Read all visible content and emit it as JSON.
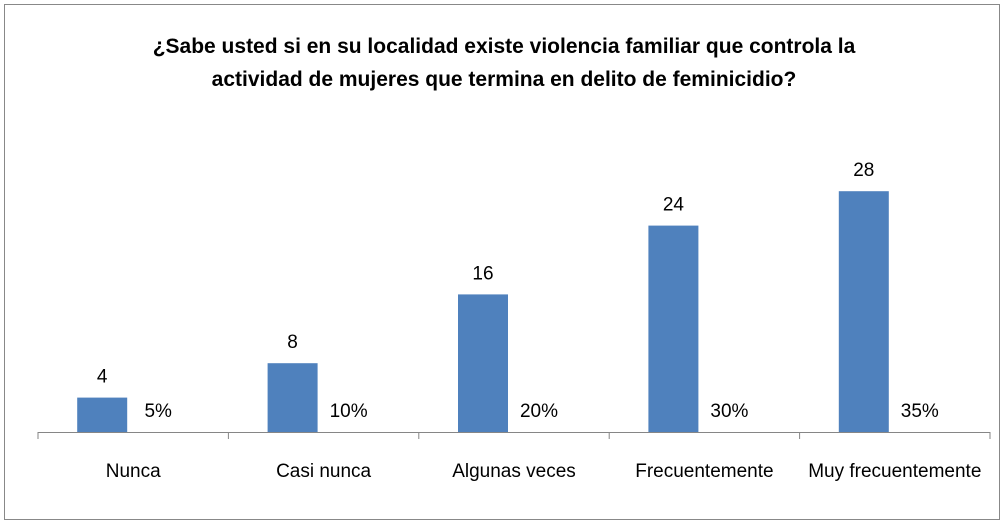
{
  "chart_data": {
    "type": "bar",
    "title": "¿Sabe usted si en su localidad existe violencia familiar que controla la actividad de mujeres que termina en delito de feminicidio?",
    "categories": [
      "Nunca",
      "Casi nunca",
      "Algunas veces",
      "Frecuentemente",
      "Muy frecuentemente"
    ],
    "series": [
      {
        "color": "#4f81bd",
        "values": [
          4,
          8,
          16,
          24,
          28
        ],
        "label_position": "outside_end"
      },
      {
        "color": "none",
        "values": [
          5,
          10,
          20,
          30,
          35
        ],
        "value_labels": [
          "5%",
          "10%",
          "20%",
          "30%",
          "35%"
        ],
        "label_position": "inside_base"
      }
    ],
    "ylim": [
      0,
      30
    ]
  }
}
